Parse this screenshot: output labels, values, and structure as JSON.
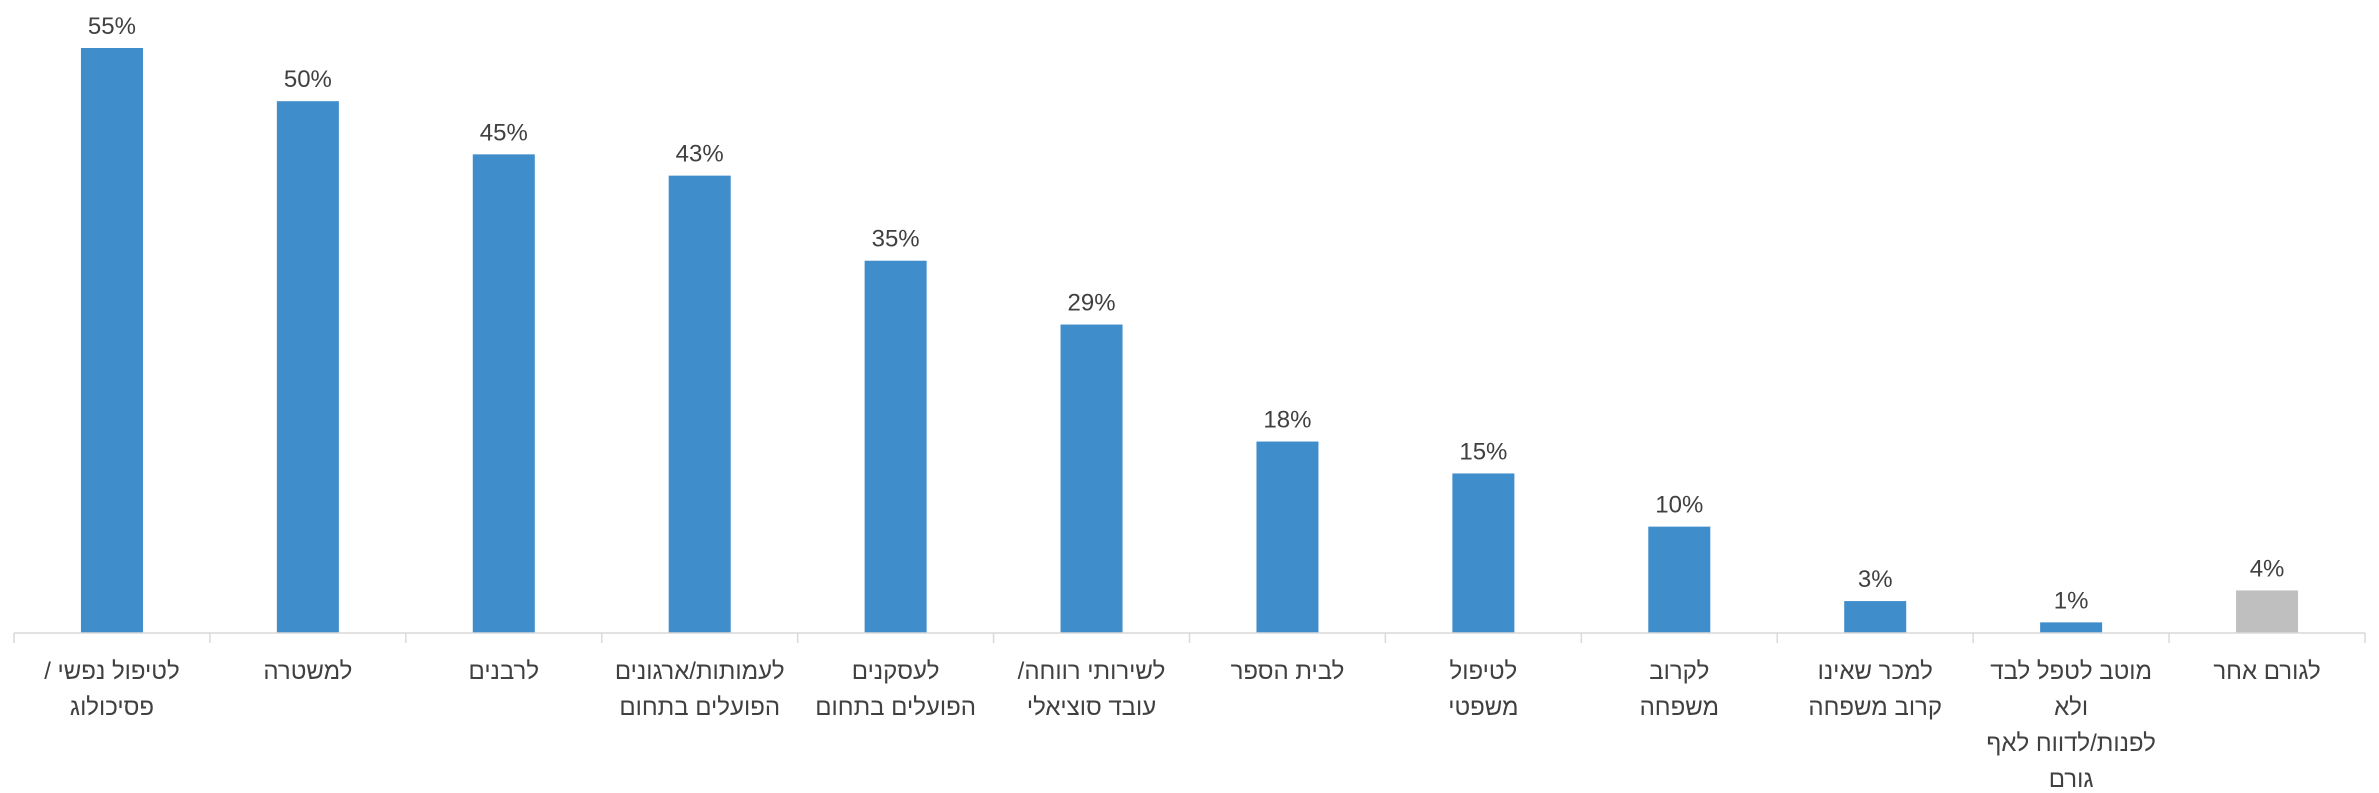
{
  "chart_data": {
    "type": "bar",
    "direction": "rtl",
    "categories": [
      [
        "לטיפול נפשי /",
        "פסיכולוג"
      ],
      [
        "למשטרה"
      ],
      [
        "לרבנים"
      ],
      [
        "לעמותות/ארגונים",
        "הפועלים בתחום"
      ],
      [
        "לעסקנים",
        "הפועלים בתחום"
      ],
      [
        "לשירותי רווחה/",
        "עובד סוציאלי"
      ],
      [
        "לבית הספר"
      ],
      [
        "לטיפול",
        "משפטי"
      ],
      [
        "לקרוב",
        "משפחה"
      ],
      [
        "למכר שאינו",
        "קרוב משפחה"
      ],
      [
        "מוטב לטפל לבד",
        "ולא",
        "לפנות/לדווח לאף",
        "גורם"
      ],
      [
        "לגורם אחר"
      ]
    ],
    "values": [
      55,
      50,
      45,
      43,
      35,
      29,
      18,
      15,
      10,
      3,
      1,
      4
    ],
    "value_labels": [
      "55%",
      "50%",
      "45%",
      "43%",
      "35%",
      "29%",
      "18%",
      "15%",
      "10%",
      "3%",
      "1%",
      "4%"
    ],
    "colors": [
      "#3F8DCB",
      "#3F8DCB",
      "#3F8DCB",
      "#3F8DCB",
      "#3F8DCB",
      "#3F8DCB",
      "#3F8DCB",
      "#3F8DCB",
      "#3F8DCB",
      "#3F8DCB",
      "#3F8DCB",
      "#BFBFBF"
    ],
    "ylim": [
      0,
      55
    ],
    "grid": false,
    "legend": "none"
  }
}
